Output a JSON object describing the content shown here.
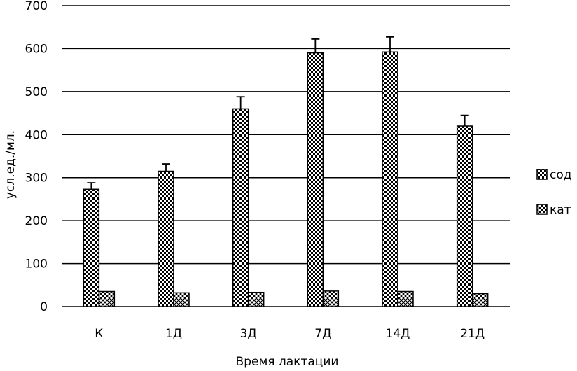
{
  "chart_data": {
    "type": "bar",
    "categories": [
      "К",
      "1Д",
      "3Д",
      "7Д",
      "14Д",
      "21Д"
    ],
    "series": [
      {
        "name": "сод",
        "values": [
          273,
          315,
          460,
          590,
          592,
          420
        ],
        "errors": [
          15,
          17,
          28,
          32,
          35,
          25
        ],
        "pattern": "dense-check"
      },
      {
        "name": "кат",
        "values": [
          35,
          32,
          33,
          36,
          35,
          30
        ],
        "errors": [
          0,
          0,
          0,
          0,
          0,
          0
        ],
        "pattern": "sparse-cross"
      }
    ],
    "xlabel": "Время лактации",
    "ylabel": "усл.ед./мл.",
    "ylim": [
      0,
      700
    ],
    "yticks": [
      0,
      100,
      200,
      300,
      400,
      500,
      600,
      700
    ],
    "grid": true,
    "legend": "right"
  }
}
